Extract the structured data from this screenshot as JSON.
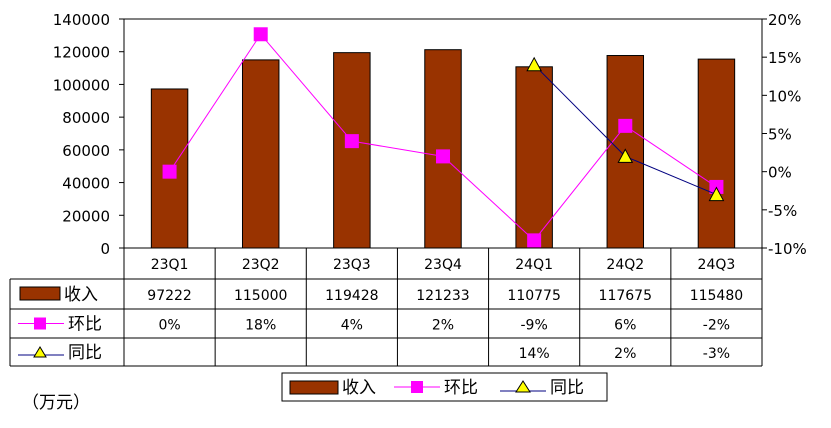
{
  "chart_data": {
    "type": "bar",
    "categories": [
      "23Q1",
      "23Q2",
      "23Q3",
      "23Q4",
      "24Q1",
      "24Q2",
      "24Q3"
    ],
    "unit_label": "（万元）",
    "y_left": {
      "min": 0,
      "max": 140000,
      "step": 20000
    },
    "y_right": {
      "min": -10,
      "max": 20,
      "step": 5,
      "suffix": "%"
    },
    "series": [
      {
        "name": "收入",
        "type": "bar",
        "axis": "left",
        "color": "#993300",
        "values": [
          97222,
          115000,
          119428,
          121233,
          110775,
          117675,
          115480
        ],
        "table_values": [
          "97222",
          "115000",
          "119428",
          "121233",
          "110775",
          "117675",
          "115480"
        ]
      },
      {
        "name": "环比",
        "type": "line",
        "axis": "right",
        "color": "#FF00FF",
        "marker": "square",
        "values": [
          0,
          18,
          4,
          2,
          -9,
          6,
          -2
        ],
        "table_values": [
          "0%",
          "18%",
          "4%",
          "2%",
          "-9%",
          "6%",
          "-2%"
        ]
      },
      {
        "name": "同比",
        "type": "line",
        "axis": "right",
        "color": "#000080",
        "marker": "triangle",
        "marker_color": "#FFFF00",
        "values": [
          null,
          null,
          null,
          null,
          14,
          2,
          -3
        ],
        "table_values": [
          "",
          "",
          "",
          "",
          "14%",
          "2%",
          "-3%"
        ]
      }
    ],
    "legend": {
      "position": "bottom",
      "items": [
        "收入",
        "环比",
        "同比"
      ]
    },
    "grid": false
  }
}
